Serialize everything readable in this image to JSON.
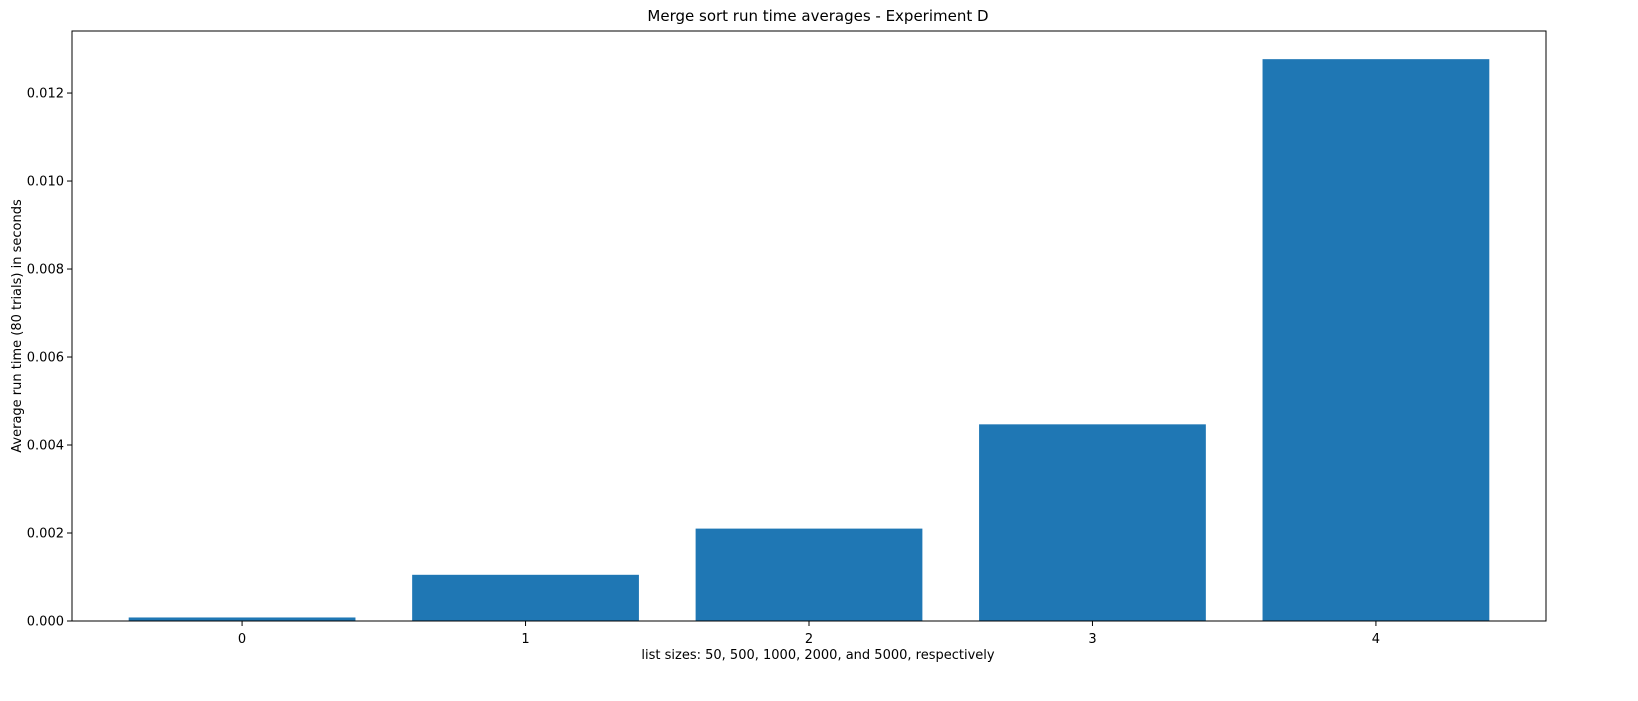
{
  "chart_data": {
    "type": "bar",
    "title": "Merge sort run time averages - Experiment D",
    "xlabel": "list sizes: 50, 500, 1000, 2000, and 5000, respectively",
    "ylabel": "Average run time (80 trials) in seconds",
    "categories": [
      "0",
      "1",
      "2",
      "3",
      "4"
    ],
    "values": [
      8e-05,
      0.00105,
      0.0021,
      0.00447,
      0.01277
    ],
    "ylim": [
      0,
      0.01341
    ],
    "yticks": [
      0.0,
      0.002,
      0.004,
      0.006,
      0.008,
      0.01,
      0.012
    ],
    "ytick_labels": [
      "0.000",
      "0.002",
      "0.004",
      "0.006",
      "0.008",
      "0.010",
      "0.012"
    ],
    "grid": false,
    "bar_color": "#1f77b4"
  }
}
